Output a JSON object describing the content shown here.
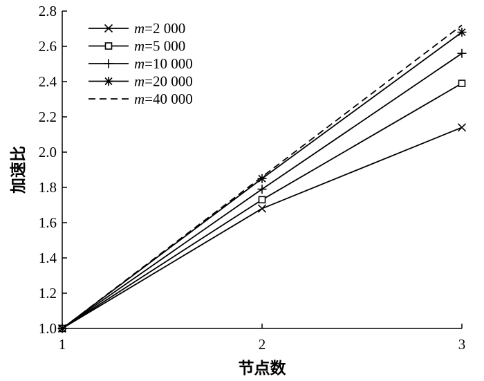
{
  "chart_data": {
    "type": "line",
    "title": "",
    "xlabel": "节点数",
    "ylabel": "加速比",
    "x": [
      1,
      2,
      3
    ],
    "xticks": [
      "1",
      "2",
      "3"
    ],
    "xlim": [
      1,
      3
    ],
    "ylim": [
      1.0,
      2.8
    ],
    "yticks": [
      "1.0",
      "1.2",
      "1.4",
      "1.6",
      "1.8",
      "2.0",
      "2.2",
      "2.4",
      "2.6",
      "2.8"
    ],
    "grid": false,
    "legend_position": "top-left",
    "series": [
      {
        "name": "m=2 000",
        "var": "m",
        "rest": "=2 000",
        "marker": "x",
        "dash": "solid",
        "color": "#000000",
        "values": [
          1.0,
          1.68,
          2.14
        ]
      },
      {
        "name": "m=5 000",
        "var": "m",
        "rest": "=5 000",
        "marker": "square",
        "dash": "solid",
        "color": "#000000",
        "values": [
          1.0,
          1.73,
          2.39
        ]
      },
      {
        "name": "m=10 000",
        "var": "m",
        "rest": "=10 000",
        "marker": "plus",
        "dash": "solid",
        "color": "#000000",
        "values": [
          1.0,
          1.79,
          2.56
        ]
      },
      {
        "name": "m=20 000",
        "var": "m",
        "rest": "=20 000",
        "marker": "star",
        "dash": "solid",
        "color": "#000000",
        "values": [
          1.0,
          1.85,
          2.68
        ]
      },
      {
        "name": "m=40 000",
        "var": "m",
        "rest": "=40 000",
        "marker": "none",
        "dash": "dashed",
        "color": "#000000",
        "values": [
          1.0,
          1.86,
          2.72
        ]
      }
    ]
  }
}
